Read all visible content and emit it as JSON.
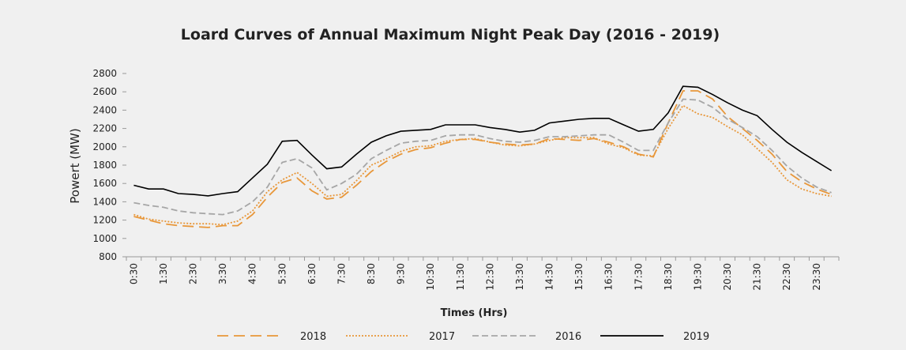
{
  "chart_data": {
    "type": "line",
    "title": "Loard Curves of Annual Maximum Night Peak Day (2016 - 2019)",
    "y_label": "Powert (MW)",
    "x_label": "Times (Hrs)",
    "categories": [
      "0:30",
      null,
      "1:30",
      null,
      "2:30",
      null,
      "3:30",
      null,
      "4:30",
      null,
      "5:30",
      null,
      "6:30",
      null,
      "7:30",
      null,
      "8:30",
      null,
      "9:30",
      null,
      "10:30",
      null,
      "11:30",
      null,
      "12:30",
      null,
      "13:30",
      null,
      "14:30",
      null,
      "15:30",
      null,
      "16:30",
      null,
      "17:30",
      null,
      "18:30",
      null,
      "19:30",
      null,
      "20:30",
      null,
      "21:30",
      null,
      "22:30",
      null,
      "23:30",
      null
    ],
    "ylim": [
      800,
      2800
    ],
    "yticks": [
      800,
      1000,
      1200,
      1400,
      1600,
      1800,
      2000,
      2200,
      2400,
      2600,
      2800
    ],
    "grid": false,
    "legend": "bottom",
    "series": [
      {
        "name": "2018",
        "color": "#e8973a",
        "style": "long-dash",
        "values": [
          1240,
          1200,
          1160,
          1140,
          1130,
          1120,
          1140,
          1140,
          1260,
          1450,
          1610,
          1660,
          1520,
          1430,
          1450,
          1580,
          1730,
          1840,
          1920,
          1970,
          1990,
          2040,
          2080,
          2080,
          2050,
          2030,
          2020,
          2030,
          2090,
          2080,
          2070,
          2090,
          2050,
          2000,
          1920,
          1890,
          2260,
          2610,
          2610,
          2520,
          2330,
          2200,
          2070,
          1920,
          1730,
          1620,
          1540,
          1480
        ]
      },
      {
        "name": "2017",
        "color": "#e8973a",
        "style": "dotted",
        "values": [
          1260,
          1210,
          1190,
          1170,
          1160,
          1160,
          1150,
          1190,
          1300,
          1510,
          1640,
          1720,
          1600,
          1460,
          1480,
          1630,
          1800,
          1870,
          1950,
          2000,
          2010,
          2060,
          2080,
          2090,
          2050,
          2020,
          2010,
          2030,
          2070,
          2100,
          2100,
          2100,
          2030,
          1990,
          1910,
          1900,
          2200,
          2450,
          2360,
          2320,
          2220,
          2130,
          1980,
          1830,
          1640,
          1540,
          1490,
          1460
        ]
      },
      {
        "name": "2016",
        "color": "#a6a6a6",
        "style": "dashed",
        "values": [
          1390,
          1360,
          1340,
          1300,
          1280,
          1270,
          1260,
          1300,
          1400,
          1560,
          1830,
          1870,
          1770,
          1530,
          1600,
          1700,
          1870,
          1960,
          2040,
          2060,
          2070,
          2120,
          2130,
          2130,
          2090,
          2060,
          2050,
          2070,
          2110,
          2110,
          2120,
          2130,
          2130,
          2050,
          1960,
          1960,
          2260,
          2520,
          2510,
          2430,
          2300,
          2210,
          2110,
          1960,
          1790,
          1660,
          1560,
          1500
        ]
      },
      {
        "name": "2019",
        "color": "#000000",
        "style": "solid",
        "values": [
          1580,
          1540,
          1540,
          1490,
          1480,
          1465,
          1490,
          1510,
          1660,
          1810,
          2060,
          2070,
          1910,
          1760,
          1780,
          1920,
          2050,
          2120,
          2170,
          2180,
          2190,
          2240,
          2240,
          2240,
          2210,
          2190,
          2160,
          2180,
          2260,
          2280,
          2300,
          2310,
          2310,
          2240,
          2170,
          2190,
          2370,
          2660,
          2650,
          2570,
          2480,
          2400,
          2340,
          2190,
          2050,
          1940,
          1840,
          1740
        ]
      }
    ]
  }
}
